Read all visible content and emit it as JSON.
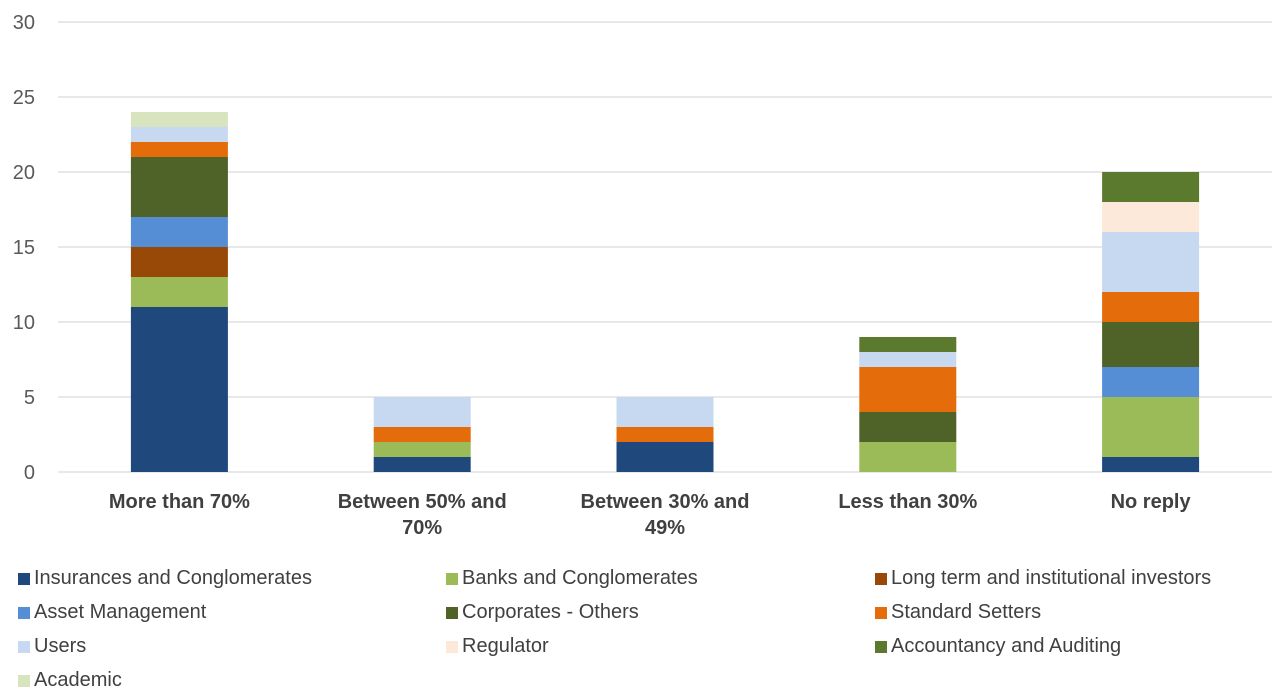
{
  "chart_data": {
    "type": "bar",
    "stacked": true,
    "categories": [
      [
        "More than 70%"
      ],
      [
        "Between 50% and",
        "70%"
      ],
      [
        "Between 30% and",
        "49%"
      ],
      [
        "Less than 30%"
      ],
      [
        "No reply"
      ]
    ],
    "ylim": [
      0,
      30
    ],
    "yticks": [
      0,
      5,
      10,
      15,
      20,
      25,
      30
    ],
    "grid": true,
    "legend_position": "bottom",
    "series": [
      {
        "name": "Insurances and Conglomerates",
        "color": "#1F497D",
        "values": [
          11,
          1,
          2,
          0,
          1
        ]
      },
      {
        "name": "Banks and Conglomerates",
        "color": "#9BBB59",
        "values": [
          2,
          1,
          0,
          2,
          4
        ]
      },
      {
        "name": "Long term and institutional investors",
        "color": "#984807",
        "values": [
          2,
          0,
          0,
          0,
          0
        ]
      },
      {
        "name": "Asset Management",
        "color": "#558ED5",
        "values": [
          2,
          0,
          0,
          0,
          2
        ]
      },
      {
        "name": "Corporates - Others",
        "color": "#4F6228",
        "values": [
          4,
          0,
          0,
          2,
          3
        ]
      },
      {
        "name": "Standard Setters",
        "color": "#E46C0A",
        "values": [
          1,
          1,
          1,
          3,
          2
        ]
      },
      {
        "name": "Users",
        "color": "#C6D9F1",
        "values": [
          1,
          2,
          2,
          1,
          4
        ]
      },
      {
        "name": "Regulator",
        "color": "#FDE9D9",
        "values": [
          0,
          0,
          0,
          0,
          2
        ]
      },
      {
        "name": "Accountancy and Auditing",
        "color": "#5B7A2E",
        "values": [
          0,
          0,
          0,
          1,
          2
        ]
      },
      {
        "name": "Academic",
        "color": "#D7E4BD",
        "values": [
          1,
          0,
          0,
          0,
          0
        ]
      }
    ]
  }
}
